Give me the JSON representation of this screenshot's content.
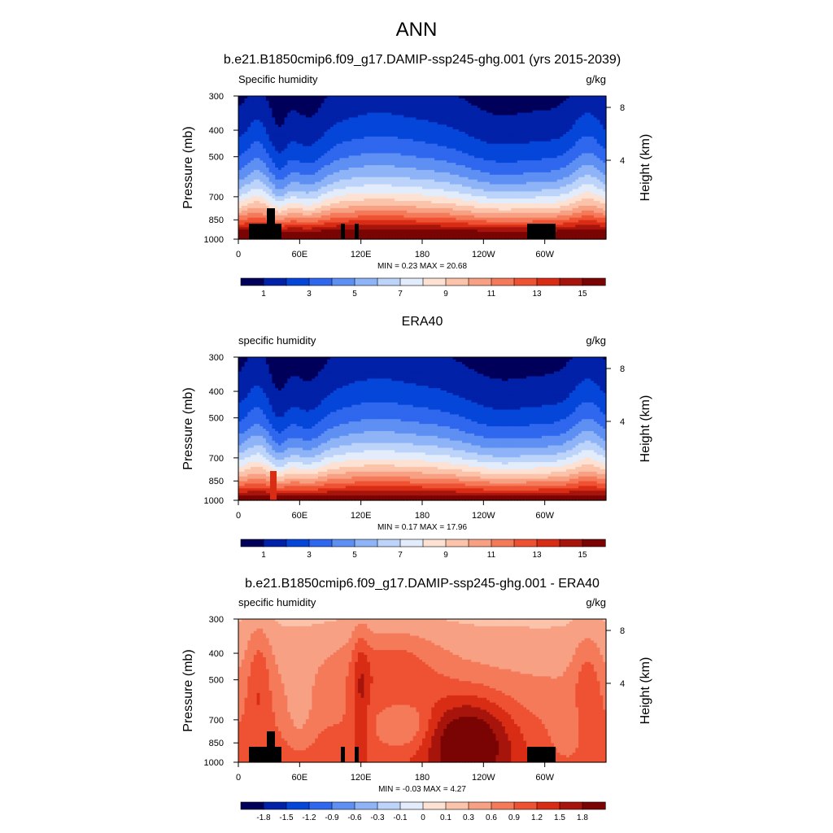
{
  "figure": {
    "title": "ANN"
  },
  "chart_data": [
    {
      "type": "heatmap",
      "title": "b.e21.B1850cmip6.f09_g17.DAMIP-ssp245-ghg.001 (yrs 2015-2039)",
      "left_label": "Specific humidity",
      "right_label": "g/kg",
      "ylabel": "Pressure (mb)",
      "ylabel_right": "Height (km)",
      "x_ticks": [
        "0",
        "60E",
        "120E",
        "180",
        "120W",
        "60W"
      ],
      "y_ticks": [
        "300",
        "400",
        "500",
        "700",
        "850",
        "1000"
      ],
      "y_ticks_right": [
        "8",
        "4"
      ],
      "ylim": [
        1000,
        300
      ],
      "xlim": [
        0,
        360
      ],
      "stats": "MIN =   0.23  MAX =  20.68",
      "colorbar_labels": [
        "1",
        "3",
        "5",
        "7",
        "9",
        "11",
        "13",
        "15"
      ],
      "colorbar_colors": [
        "#00005a",
        "#0021a8",
        "#0546d9",
        "#2f67ee",
        "#5e8ff3",
        "#8eb4f7",
        "#bcd3fa",
        "#e3ecfb",
        "#fde1d3",
        "#fbc3aa",
        "#f7a083",
        "#f47a5a",
        "#ee5233",
        "#d92c15",
        "#a7140c",
        "#7a0403"
      ],
      "field": "humidity"
    },
    {
      "type": "heatmap",
      "title": "ERA40",
      "left_label": "specific humidity",
      "right_label": "g/kg",
      "ylabel": "Pressure (mb)",
      "ylabel_right": "Height (km)",
      "x_ticks": [
        "0",
        "60E",
        "120E",
        "180",
        "120W",
        "60W"
      ],
      "y_ticks": [
        "300",
        "400",
        "500",
        "700",
        "850",
        "1000"
      ],
      "y_ticks_right": [
        "8",
        "4"
      ],
      "ylim": [
        1000,
        300
      ],
      "xlim": [
        0,
        360
      ],
      "stats": "MIN =   0.17  MAX =  17.96",
      "colorbar_labels": [
        "1",
        "3",
        "5",
        "7",
        "9",
        "11",
        "13",
        "15"
      ],
      "colorbar_colors": [
        "#00005a",
        "#0021a8",
        "#0546d9",
        "#2f67ee",
        "#5e8ff3",
        "#8eb4f7",
        "#bcd3fa",
        "#e3ecfb",
        "#fde1d3",
        "#fbc3aa",
        "#f7a083",
        "#f47a5a",
        "#ee5233",
        "#d92c15",
        "#a7140c",
        "#7a0403"
      ],
      "field": "humidity_era"
    },
    {
      "type": "heatmap",
      "title": "b.e21.B1850cmip6.f09_g17.DAMIP-ssp245-ghg.001 - ERA40",
      "left_label": "specific humidity",
      "right_label": "g/kg",
      "ylabel": "Pressure (mb)",
      "ylabel_right": "Height (km)",
      "x_ticks": [
        "0",
        "60E",
        "120E",
        "180",
        "120W",
        "60W"
      ],
      "y_ticks": [
        "300",
        "400",
        "500",
        "700",
        "850",
        "1000"
      ],
      "y_ticks_right": [
        "8",
        "4"
      ],
      "ylim": [
        1000,
        300
      ],
      "xlim": [
        0,
        360
      ],
      "stats": "MIN =  -0.03  MAX =   4.27",
      "colorbar_labels": [
        "-1.8",
        "-1.5",
        "-1.2",
        "-0.9",
        "-0.6",
        "-0.3",
        "-0.1",
        "0",
        "0.1",
        "0.3",
        "0.6",
        "0.9",
        "1.2",
        "1.5",
        "1.8"
      ],
      "colorbar_colors": [
        "#00005a",
        "#0021a8",
        "#0546d9",
        "#2f67ee",
        "#5e8ff3",
        "#8eb4f7",
        "#bcd3fa",
        "#e3ecfb",
        "#fde1d3",
        "#fbc3aa",
        "#f7a083",
        "#f47a5a",
        "#ee5233",
        "#d92c15",
        "#a7140c",
        "#7a0403"
      ],
      "field": "difference"
    }
  ]
}
